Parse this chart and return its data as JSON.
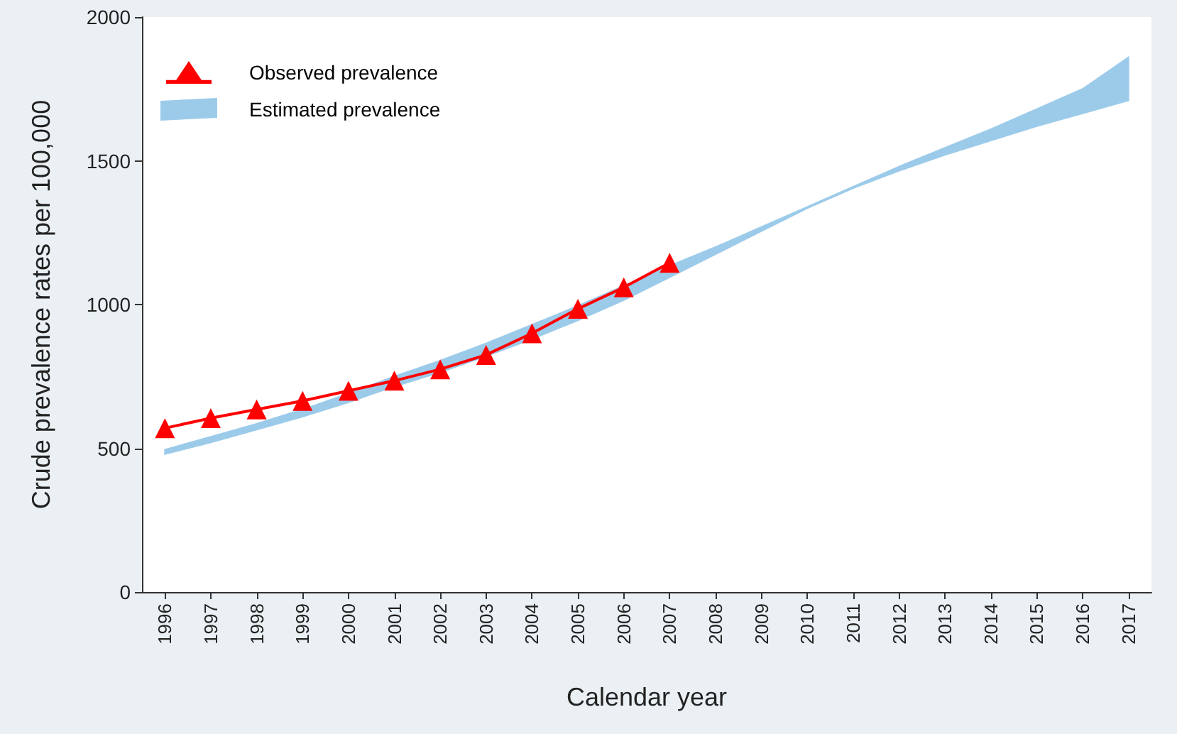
{
  "chart_data": {
    "type": "line",
    "xlabel": "Calendar year",
    "ylabel": "Crude prevalence rates per 100,000",
    "categories": [
      "1996",
      "1997",
      "1998",
      "1999",
      "2000",
      "2001",
      "2002",
      "2003",
      "2004",
      "2005",
      "2006",
      "2007",
      "2008",
      "2009",
      "2010",
      "2011",
      "2012",
      "2013",
      "2014",
      "2015",
      "2016",
      "2017"
    ],
    "series": [
      {
        "name": "Observed prevalence",
        "color": "#ff0000",
        "marker": "triangle",
        "line_style": "solid",
        "values": [
          570,
          605,
          635,
          665,
          700,
          735,
          775,
          825,
          900,
          985,
          1060,
          1145,
          null,
          null,
          null,
          null,
          null,
          null,
          null,
          null,
          null,
          null
        ]
      },
      {
        "name": "Estimated prevalence",
        "type": "area",
        "color": "#9ccbea",
        "values": [
          null,
          null,
          null,
          null,
          null,
          null,
          null,
          null,
          null,
          null,
          null,
          null,
          null,
          null,
          null,
          null,
          null,
          null,
          null,
          null,
          null,
          null
        ],
        "lower": [
          480,
          520,
          565,
          610,
          660,
          715,
          765,
          820,
          880,
          945,
          1015,
          1095,
          1175,
          1255,
          1335,
          1405,
          1465,
          1520,
          1570,
          1620,
          1665,
          1710
        ],
        "upper": [
          495,
          540,
          585,
          635,
          690,
          750,
          805,
          865,
          930,
          995,
          1065,
          1135,
          1200,
          1270,
          1340,
          1410,
          1480,
          1545,
          1610,
          1680,
          1750,
          1860
        ]
      }
    ],
    "ylim": [
      0,
      2000
    ],
    "yticks": [
      0,
      500,
      1000,
      1500,
      2000
    ],
    "grid": false,
    "legend": "top left"
  }
}
